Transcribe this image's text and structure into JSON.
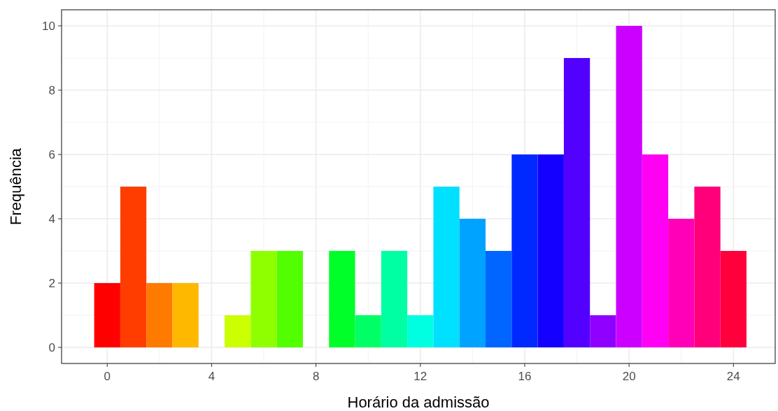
{
  "chart_data": {
    "type": "histogram",
    "xlabel": "Horário da admissão",
    "ylabel": "Frequência",
    "bins": [
      -0.5,
      0.5,
      1.5,
      2.5,
      3.5,
      4.5,
      5.5,
      6.5,
      7.5,
      8.5,
      9.5,
      10.5,
      11.5,
      12.5,
      13.5,
      14.5,
      15.5,
      16.5,
      17.5,
      18.5,
      19.5,
      20.5,
      21.5,
      22.5,
      23.5,
      24.5
    ],
    "values": [
      2,
      5,
      2,
      2,
      0,
      1,
      3,
      3,
      0,
      3,
      1,
      3,
      1,
      5,
      4,
      3,
      6,
      6,
      9,
      1,
      10,
      6,
      4,
      5,
      3
    ],
    "colors": [
      "#ff0000",
      "#ff3d00",
      "#ff7a00",
      "#ffb800",
      "#fff500",
      "#ccff00",
      "#8fff00",
      "#52ff00",
      "#14ff00",
      "#00ff29",
      "#00ff66",
      "#00ffa3",
      "#00ffe0",
      "#00e0ff",
      "#00a3ff",
      "#0066ff",
      "#0029ff",
      "#1400ff",
      "#5200ff",
      "#8f00ff",
      "#cc00ff",
      "#ff00f5",
      "#ff00b8",
      "#ff007a",
      "#ff003d"
    ],
    "xlim": [
      -1.75,
      25.6
    ],
    "ylim": [
      -0.5,
      10.5
    ],
    "xticks": [
      0,
      4,
      8,
      12,
      16,
      20,
      24
    ],
    "yticks": [
      0,
      2,
      4,
      6,
      8,
      10
    ],
    "grid": true
  }
}
